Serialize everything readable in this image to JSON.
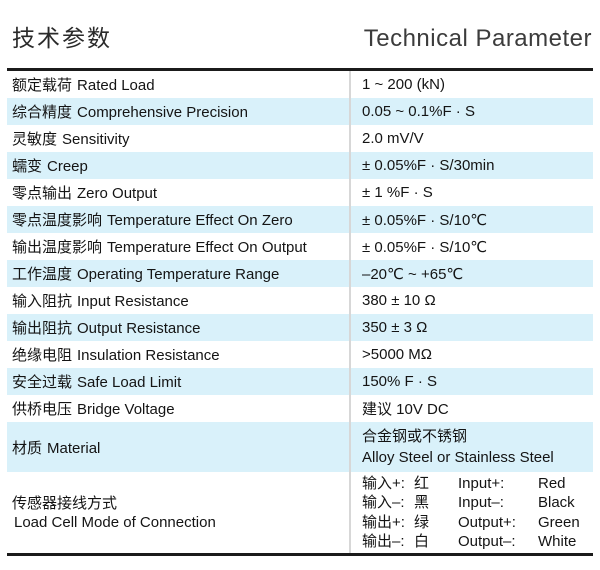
{
  "header": {
    "title_zh": "技术参数",
    "title_en": "Technical Parameter"
  },
  "table": {
    "rows": [
      {
        "label_zh": "额定载荷",
        "label_en": "Rated Load",
        "value": "1 ~ 200 (kN)"
      },
      {
        "label_zh": "综合精度",
        "label_en": "Comprehensive Precision",
        "value": "0.05 ~ 0.1%F · S"
      },
      {
        "label_zh": "灵敏度",
        "label_en": "Sensitivity",
        "value": "2.0 mV/V"
      },
      {
        "label_zh": "蠕变",
        "label_en": "Creep",
        "value": "± 0.05%F · S/30min"
      },
      {
        "label_zh": "零点输出",
        "label_en": "Zero Output",
        "value": "± 1 %F · S"
      },
      {
        "label_zh": "零点温度影响",
        "label_en": "Temperature Effect On Zero",
        "value": "± 0.05%F · S/10℃"
      },
      {
        "label_zh": "输出温度影响",
        "label_en": "Temperature Effect On Output",
        "value": "± 0.05%F · S/10℃"
      },
      {
        "label_zh": "工作温度",
        "label_en": "Operating Temperature Range",
        "value": "–20℃ ~ +65℃"
      },
      {
        "label_zh": "输入阻抗",
        "label_en": "Input Resistance",
        "value": "380 ± 10 Ω"
      },
      {
        "label_zh": "输出阻抗",
        "label_en": "Output Resistance",
        "value": "350 ± 3 Ω"
      },
      {
        "label_zh": "绝缘电阻",
        "label_en": "Insulation Resistance",
        "value": ">5000 MΩ"
      },
      {
        "label_zh": "安全过载",
        "label_en": "Safe Load Limit",
        "value": "150% F · S"
      },
      {
        "label_zh": "供桥电压",
        "label_en": "Bridge Voltage",
        "value": "建议 10V DC"
      }
    ],
    "material": {
      "label_zh": "材质",
      "label_en": "Material",
      "value_line1": "合金钢或不锈钢",
      "value_line2": "Alloy Steel or Stainless Steel"
    },
    "connection": {
      "label_zh": "传感器接线方式",
      "label_en": "Load Cell Mode of Connection",
      "lines": [
        {
          "cn": "输入+:",
          "cn_color": "红",
          "en": "Input+:",
          "en_color": "Red"
        },
        {
          "cn": "输入–:",
          "cn_color": "黑",
          "en": "Input–:",
          "en_color": "Black"
        },
        {
          "cn": "输出+:",
          "cn_color": "绿",
          "en": "Output+:",
          "en_color": "Green"
        },
        {
          "cn": "输出–:",
          "cn_color": "白",
          "en": "Output–:",
          "en_color": "White"
        }
      ]
    }
  },
  "colors": {
    "row_highlight": "#d9f1fa",
    "rule": "#1b1b1b",
    "divider": "#d7d7d7",
    "text": "#141414"
  }
}
